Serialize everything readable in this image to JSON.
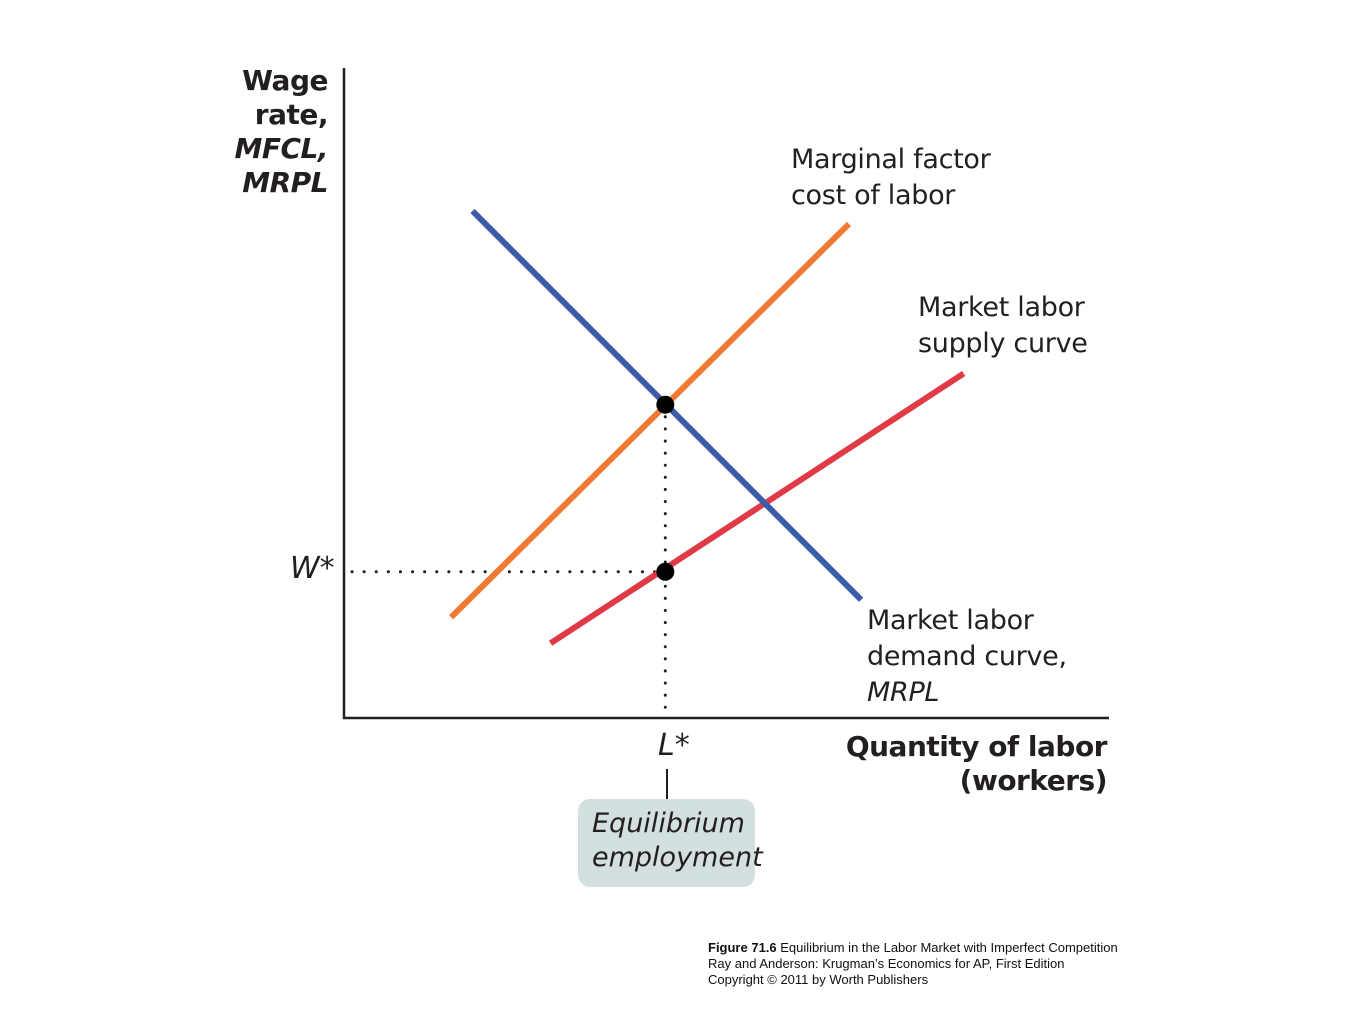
{
  "chart_data": {
    "type": "line",
    "xlabel": [
      "Quantity of labor",
      "(workers)"
    ],
    "ylabel": [
      "Wage",
      "rate,",
      "MFCL,",
      "MRPL"
    ],
    "x_tick_labels": [
      "L*"
    ],
    "y_tick_labels": [
      "W*"
    ],
    "xlim": [
      0,
      10
    ],
    "ylim": [
      0,
      10
    ],
    "series": [
      {
        "name": "Marginal factor cost of labor",
        "label_lines": [
          "Marginal factor",
          "cost of labor"
        ],
        "color": "#f07a33",
        "points": [
          [
            1.4,
            1.55
          ],
          [
            6.6,
            7.6
          ]
        ]
      },
      {
        "name": "Market labor supply curve",
        "label_lines": [
          "Market labor",
          "supply curve"
        ],
        "color": "#e03a47",
        "points": [
          [
            2.7,
            1.15
          ],
          [
            8.1,
            5.3
          ]
        ]
      },
      {
        "name": "Market labor demand curve, MRPL",
        "label_lines": [
          "Market labor",
          "demand curve,"
        ],
        "label_italic": "MRPL",
        "color": "#3d5ca8",
        "points": [
          [
            1.68,
            7.8
          ],
          [
            6.76,
            1.82
          ]
        ]
      }
    ],
    "equilibrium_points": [
      [
        4.2,
        4.82
      ],
      [
        4.2,
        2.25
      ]
    ],
    "annotation": [
      "Equilibrium",
      "employment"
    ]
  },
  "caption": {
    "figure": "Figure 71.6",
    "title": "Equilibrium in the Labor Market with Imperfect Competition",
    "line2": "Ray and Anderson: Krugman’s Economics for AP, First Edition",
    "line3": "Copyright © 2011 by Worth Publishers"
  }
}
